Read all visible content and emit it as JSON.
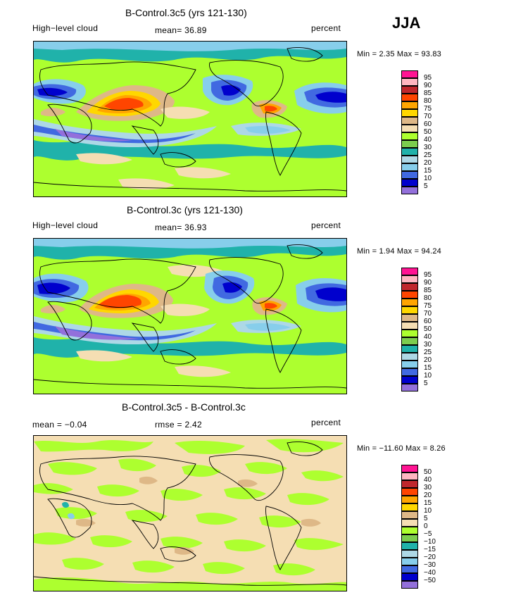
{
  "season": "JJA",
  "panels": [
    {
      "title": "B-Control.3c5 (yrs 121-130)",
      "left_label": "High−level cloud",
      "mid_label": "mean=   36.89",
      "right_label": "percent",
      "minmax": "Min =    2.35  Max =   93.83",
      "colorbar": {
        "labels": [
          "95",
          "90",
          "85",
          "80",
          "75",
          "70",
          "60",
          "50",
          "40",
          "30",
          "25",
          "20",
          "15",
          "10",
          "5"
        ],
        "colors": [
          "#ff1493",
          "#ffb6c1",
          "#c0272d",
          "#ff4500",
          "#ffa500",
          "#ffd700",
          "#deb887",
          "#f5deb3",
          "#adff2f",
          "#7ccd4e",
          "#20b2aa",
          "#add8e6",
          "#87ceeb",
          "#4169e1",
          "#0000cd",
          "#9370db"
        ]
      }
    },
    {
      "title": "B-Control.3c (yrs 121-130)",
      "left_label": "High−level cloud",
      "mid_label": "mean=   36.93",
      "right_label": "percent",
      "minmax": "Min =    1.94  Max =   94.24",
      "colorbar": {
        "labels": [
          "95",
          "90",
          "85",
          "80",
          "75",
          "70",
          "60",
          "50",
          "40",
          "30",
          "25",
          "20",
          "15",
          "10",
          "5"
        ],
        "colors": [
          "#ff1493",
          "#ffb6c1",
          "#c0272d",
          "#ff4500",
          "#ffa500",
          "#ffd700",
          "#deb887",
          "#f5deb3",
          "#adff2f",
          "#7ccd4e",
          "#20b2aa",
          "#add8e6",
          "#87ceeb",
          "#4169e1",
          "#0000cd",
          "#9370db"
        ]
      }
    },
    {
      "title": "B-Control.3c5 - B-Control.3c",
      "left_label": "mean =   −0.04",
      "mid_label": "rmse =    2.42",
      "right_label": "percent",
      "minmax": "Min = −11.60  Max =    8.26",
      "colorbar": {
        "labels": [
          "50",
          "40",
          "30",
          "20",
          "15",
          "10",
          "5",
          "0",
          "−5",
          "−10",
          "−15",
          "−20",
          "−30",
          "−40",
          "−50"
        ],
        "colors": [
          "#ff1493",
          "#ffb6c1",
          "#c0272d",
          "#ff4500",
          "#ffa500",
          "#ffd700",
          "#deb887",
          "#f5deb3",
          "#adff2f",
          "#7ccd4e",
          "#20b2aa",
          "#add8e6",
          "#87ceeb",
          "#4169e1",
          "#0000cd",
          "#9370db"
        ]
      }
    }
  ]
}
